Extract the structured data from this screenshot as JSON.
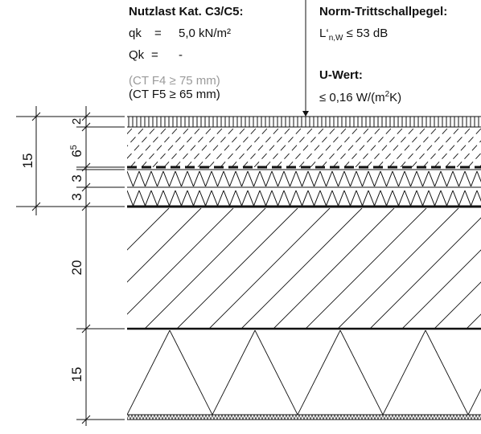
{
  "load": {
    "title": "Nutzlast Kat. C3/C5:",
    "qk_label": "qk",
    "qk_eq": "=",
    "qk_value": "5,0 kN/m²",
    "Qk_label": "Qk",
    "Qk_eq": "=",
    "Qk_value": "-",
    "ct_f4": "(CT F4 ≥ 75 mm)",
    "ct_f5": "(CT F5 ≥ 65 mm)"
  },
  "sound": {
    "title": "Norm-Trittschallpegel:",
    "value_prefix": "L‘",
    "value_sub": "n,W",
    "value_suffix": " ≤ 53 dB"
  },
  "uvalue": {
    "title": "U-Wert:",
    "value_prefix": "≤ 0,16 W/(m",
    "value_sup": "2",
    "value_suffix": "K)"
  },
  "dimensions": {
    "total": "15",
    "covering": "2",
    "screed_main": "6",
    "screed_sup": "5",
    "insulation1": "3",
    "insulation2": "3",
    "slab": "20",
    "ceiling": "15"
  }
}
